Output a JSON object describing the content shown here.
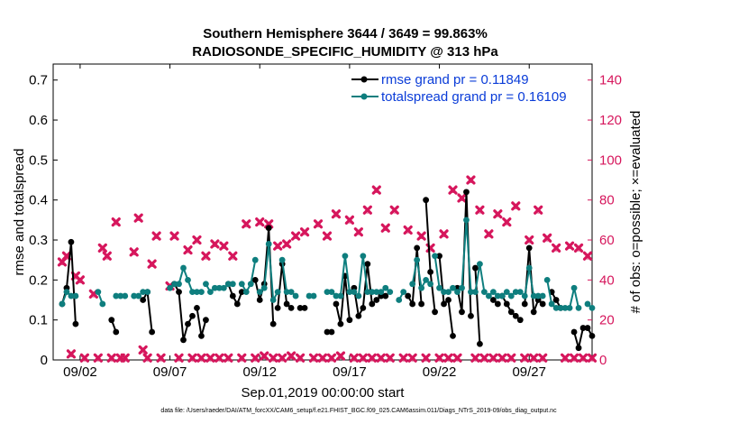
{
  "colors": {
    "rmse": "#000000",
    "spread": "#0e7e7e",
    "obs": "#d6165c",
    "legend_text": "#0a3cd8"
  },
  "chart_data": {
    "type": "line",
    "title_line1": "Southern Hemisphere 3644 / 3649 = 99.863%",
    "title_line2": "RADIOSONDE_SPECIFIC_HUMIDITY @ 313 hPa",
    "xlabel": "Sep.01,2019 00:00:00 start",
    "ylabel_left": "rmse and totalspread",
    "ylabel_right": "# of obs: o=possible; ×=evaluated",
    "x_range": [
      0.5,
      30.5
    ],
    "ylim_left": [
      0,
      0.74
    ],
    "ylim_right": [
      0,
      148
    ],
    "left_ticks": [
      "0",
      "0.1",
      "0.2",
      "0.3",
      "0.4",
      "0.5",
      "0.6",
      "0.7"
    ],
    "left_tick_values": [
      0,
      0.1,
      0.2,
      0.3,
      0.4,
      0.5,
      0.6,
      0.7
    ],
    "right_ticks": [
      "0",
      "20",
      "40",
      "60",
      "80",
      "100",
      "120",
      "140"
    ],
    "right_tick_values": [
      0,
      20,
      40,
      60,
      80,
      100,
      120,
      140
    ],
    "x_tick_labels": [
      "09/02",
      "09/07",
      "09/12",
      "09/17",
      "09/22",
      "09/27"
    ],
    "x_tick_values": [
      2,
      7,
      12,
      17,
      22,
      27
    ],
    "legend": [
      {
        "name": "rmse grand pr = 0.11849",
        "key": "rmse"
      },
      {
        "name": "totalspread grand pr = 0.16109",
        "key": "spread"
      }
    ],
    "series": [
      {
        "name": "rmse",
        "segments": [
          [
            [
              1.0,
              0.14
            ],
            [
              1.25,
              0.18
            ],
            [
              1.5,
              0.295
            ],
            [
              1.75,
              0.09
            ]
          ],
          [
            [
              3.75,
              0.1
            ],
            [
              4.0,
              0.07
            ]
          ],
          [
            [
              5.5,
              0.15
            ],
            [
              5.75,
              0.17
            ],
            [
              6.0,
              0.07
            ]
          ],
          [
            [
              7.25,
              0.19
            ],
            [
              7.5,
              0.17
            ],
            [
              7.75,
              0.05
            ],
            [
              8.0,
              0.09
            ],
            [
              8.25,
              0.11
            ]
          ],
          [
            [
              8.5,
              0.13
            ],
            [
              8.75,
              0.06
            ],
            [
              9.0,
              0.1
            ]
          ],
          [
            [
              10.25,
              0.19
            ],
            [
              10.5,
              0.16
            ],
            [
              10.75,
              0.14
            ],
            [
              11.0,
              0.17
            ]
          ],
          [
            [
              11.75,
              0.2
            ],
            [
              12.0,
              0.15
            ],
            [
              12.25,
              0.19
            ],
            [
              12.5,
              0.33
            ],
            [
              12.75,
              0.09
            ]
          ],
          [
            [
              13.0,
              0.13
            ],
            [
              13.25,
              0.24
            ],
            [
              13.5,
              0.14
            ],
            [
              13.75,
              0.13
            ]
          ],
          [
            [
              14.25,
              0.13
            ],
            [
              14.5,
              0.13
            ]
          ],
          [
            [
              15.75,
              0.07
            ],
            [
              16.0,
              0.07
            ]
          ],
          [
            [
              16.25,
              0.14
            ],
            [
              16.5,
              0.09
            ],
            [
              16.75,
              0.21
            ],
            [
              17.0,
              0.1
            ]
          ],
          [
            [
              17.25,
              0.18
            ],
            [
              17.5,
              0.11
            ],
            [
              17.75,
              0.13
            ],
            [
              18.0,
              0.24
            ],
            [
              18.25,
              0.14
            ]
          ],
          [
            [
              18.5,
              0.15
            ],
            [
              18.75,
              0.16
            ],
            [
              19.0,
              0.16
            ]
          ],
          [
            [
              20.25,
              0.16
            ],
            [
              20.5,
              0.14
            ],
            [
              20.75,
              0.28
            ],
            [
              21.0,
              0.14
            ]
          ],
          [
            [
              21.25,
              0.4
            ],
            [
              21.5,
              0.22
            ],
            [
              21.75,
              0.12
            ]
          ],
          [
            [
              22.0,
              0.26
            ],
            [
              22.25,
              0.14
            ],
            [
              22.5,
              0.15
            ],
            [
              22.75,
              0.06
            ]
          ],
          [
            [
              23.0,
              0.18
            ],
            [
              23.25,
              0.12
            ],
            [
              23.5,
              0.42
            ],
            [
              23.75,
              0.11
            ]
          ],
          [
            [
              24.0,
              0.23
            ],
            [
              24.25,
              0.04
            ]
          ],
          [
            [
              25.0,
              0.15
            ],
            [
              25.25,
              0.14
            ]
          ],
          [
            [
              25.5,
              0.16
            ],
            [
              25.75,
              0.14
            ],
            [
              26.0,
              0.12
            ],
            [
              26.25,
              0.11
            ],
            [
              26.5,
              0.1
            ]
          ],
          [
            [
              26.75,
              0.14
            ],
            [
              27.0,
              0.28
            ],
            [
              27.25,
              0.12
            ],
            [
              27.5,
              0.15
            ],
            [
              27.75,
              0.14
            ]
          ],
          [
            [
              28.25,
              0.17
            ],
            [
              28.5,
              0.15
            ],
            [
              28.75,
              0.13
            ]
          ],
          [
            [
              29.5,
              0.07
            ],
            [
              29.75,
              0.03
            ],
            [
              30.0,
              0.08
            ]
          ],
          [
            [
              30.25,
              0.08
            ],
            [
              30.5,
              0.06
            ]
          ]
        ]
      },
      {
        "name": "totalspread",
        "segments": [
          [
            [
              1.0,
              0.14
            ],
            [
              1.25,
              0.17
            ],
            [
              1.5,
              0.16
            ],
            [
              1.75,
              0.16
            ]
          ],
          [
            [
              3.0,
              0.17
            ],
            [
              3.25,
              0.14
            ]
          ],
          [
            [
              4.0,
              0.16
            ],
            [
              4.25,
              0.16
            ],
            [
              4.5,
              0.16
            ]
          ],
          [
            [
              5.0,
              0.16
            ],
            [
              5.25,
              0.16
            ]
          ],
          [
            [
              5.5,
              0.17
            ],
            [
              5.75,
              0.17
            ]
          ],
          [
            [
              7.0,
              0.18
            ],
            [
              7.25,
              0.19
            ],
            [
              7.5,
              0.19
            ],
            [
              7.75,
              0.23
            ],
            [
              8.0,
              0.2
            ],
            [
              8.25,
              0.17
            ]
          ],
          [
            [
              8.5,
              0.17
            ],
            [
              8.75,
              0.17
            ]
          ],
          [
            [
              9.0,
              0.19
            ],
            [
              9.25,
              0.17
            ],
            [
              9.5,
              0.18
            ],
            [
              9.75,
              0.18
            ],
            [
              10.0,
              0.18
            ]
          ],
          [
            [
              10.25,
              0.19
            ],
            [
              10.5,
              0.19
            ]
          ],
          [
            [
              11.0,
              0.19
            ],
            [
              11.25,
              0.17
            ],
            [
              11.5,
              0.19
            ],
            [
              11.75,
              0.25
            ]
          ],
          [
            [
              12.0,
              0.17
            ],
            [
              12.25,
              0.18
            ],
            [
              12.5,
              0.29
            ],
            [
              12.75,
              0.15
            ],
            [
              13.0,
              0.17
            ]
          ],
          [
            [
              13.25,
              0.25
            ],
            [
              13.5,
              0.17
            ],
            [
              13.75,
              0.17
            ],
            [
              14.0,
              0.16
            ]
          ],
          [
            [
              14.75,
              0.16
            ],
            [
              15.0,
              0.16
            ]
          ],
          [
            [
              15.75,
              0.17
            ],
            [
              16.0,
              0.17
            ],
            [
              16.25,
              0.16
            ]
          ],
          [
            [
              16.5,
              0.16
            ],
            [
              16.75,
              0.26
            ],
            [
              17.0,
              0.17
            ],
            [
              17.25,
              0.17
            ]
          ],
          [
            [
              17.5,
              0.16
            ],
            [
              17.75,
              0.26
            ],
            [
              18.0,
              0.17
            ],
            [
              18.25,
              0.17
            ],
            [
              18.5,
              0.17
            ]
          ],
          [
            [
              18.75,
              0.17
            ],
            [
              19.0,
              0.18
            ],
            [
              19.25,
              0.17
            ]
          ],
          [
            [
              19.75,
              0.15
            ],
            [
              20.0,
              0.17
            ]
          ],
          [
            [
              20.5,
              0.19
            ],
            [
              20.75,
              0.25
            ],
            [
              21.0,
              0.18
            ],
            [
              21.25,
              0.2
            ],
            [
              21.5,
              0.19
            ]
          ],
          [
            [
              21.75,
              0.26
            ],
            [
              22.0,
              0.18
            ],
            [
              22.25,
              0.17
            ],
            [
              22.5,
              0.17
            ],
            [
              22.75,
              0.18
            ],
            [
              23.0,
              0.17
            ]
          ],
          [
            [
              23.25,
              0.18
            ],
            [
              23.5,
              0.35
            ],
            [
              23.75,
              0.17
            ],
            [
              24.0,
              0.17
            ],
            [
              24.25,
              0.24
            ],
            [
              24.5,
              0.17
            ]
          ],
          [
            [
              24.75,
              0.16
            ],
            [
              25.0,
              0.17
            ],
            [
              25.25,
              0.16
            ]
          ],
          [
            [
              25.5,
              0.16
            ],
            [
              25.75,
              0.17
            ],
            [
              26.0,
              0.16
            ],
            [
              26.25,
              0.17
            ],
            [
              26.5,
              0.17
            ]
          ],
          [
            [
              26.75,
              0.16
            ],
            [
              27.0,
              0.23
            ],
            [
              27.25,
              0.16
            ],
            [
              27.5,
              0.16
            ],
            [
              27.75,
              0.16
            ]
          ],
          [
            [
              28.0,
              0.2
            ],
            [
              28.25,
              0.14
            ],
            [
              28.5,
              0.13
            ],
            [
              28.75,
              0.13
            ],
            [
              29.0,
              0.13
            ]
          ],
          [
            [
              29.25,
              0.13
            ],
            [
              29.5,
              0.18
            ],
            [
              29.75,
              0.13
            ]
          ],
          [
            [
              30.25,
              0.14
            ],
            [
              30.5,
              0.13
            ]
          ]
        ]
      }
    ],
    "obs_possible": [
      [
        1,
        49
      ],
      [
        1.25,
        52
      ],
      [
        1.5,
        3
      ],
      [
        1.75,
        42
      ],
      [
        2,
        40
      ],
      [
        2.25,
        1
      ],
      [
        2.75,
        33
      ],
      [
        3,
        1
      ],
      [
        3.25,
        56
      ],
      [
        3.5,
        52
      ],
      [
        3.75,
        1
      ],
      [
        4,
        69
      ],
      [
        4.25,
        1
      ],
      [
        4.5,
        1
      ],
      [
        5,
        54
      ],
      [
        5.25,
        71
      ],
      [
        5.5,
        5
      ],
      [
        5.75,
        1
      ],
      [
        6,
        48
      ],
      [
        6.25,
        62
      ],
      [
        6.5,
        1
      ],
      [
        7,
        37
      ],
      [
        7.25,
        62
      ],
      [
        7.5,
        1
      ],
      [
        8,
        55
      ],
      [
        8.25,
        1
      ],
      [
        8.5,
        60
      ],
      [
        8.75,
        1
      ],
      [
        9,
        52
      ],
      [
        9.25,
        1
      ],
      [
        9.5,
        58
      ],
      [
        9.75,
        1
      ],
      [
        10,
        57
      ],
      [
        10.25,
        1
      ],
      [
        10.5,
        52
      ],
      [
        11,
        1
      ],
      [
        11.25,
        68
      ],
      [
        11.75,
        1
      ],
      [
        12,
        69
      ],
      [
        12.25,
        2
      ],
      [
        12.5,
        68
      ],
      [
        12.75,
        1
      ],
      [
        13,
        57
      ],
      [
        13.25,
        1
      ],
      [
        13.5,
        58
      ],
      [
        13.75,
        2
      ],
      [
        14,
        62
      ],
      [
        14.25,
        1
      ],
      [
        14.5,
        64
      ],
      [
        15,
        1
      ],
      [
        15.25,
        68
      ],
      [
        15.5,
        1
      ],
      [
        15.75,
        62
      ],
      [
        16,
        1
      ],
      [
        16.25,
        73
      ],
      [
        16.5,
        2
      ],
      [
        17,
        70
      ],
      [
        17.25,
        1
      ],
      [
        17.5,
        64
      ],
      [
        17.75,
        1
      ],
      [
        18,
        75
      ],
      [
        18.25,
        1
      ],
      [
        18.5,
        85
      ],
      [
        18.75,
        1
      ],
      [
        19,
        66
      ],
      [
        19.25,
        1
      ],
      [
        19.5,
        75
      ],
      [
        20,
        1
      ],
      [
        20.25,
        65
      ],
      [
        20.5,
        1
      ],
      [
        21,
        62
      ],
      [
        21.25,
        1
      ],
      [
        21.5,
        56
      ],
      [
        22,
        1
      ],
      [
        22.25,
        63
      ],
      [
        22.5,
        1
      ],
      [
        22.75,
        85
      ],
      [
        23,
        1
      ],
      [
        23.25,
        81
      ],
      [
        23.75,
        90
      ],
      [
        24,
        1
      ],
      [
        24.25,
        75
      ],
      [
        24.5,
        1
      ],
      [
        24.75,
        63
      ],
      [
        25,
        1
      ],
      [
        25.25,
        73
      ],
      [
        25.5,
        1
      ],
      [
        25.75,
        69
      ],
      [
        26,
        1
      ],
      [
        26.25,
        77
      ],
      [
        26.75,
        1
      ],
      [
        27,
        60
      ],
      [
        27.25,
        1
      ],
      [
        27.5,
        75
      ],
      [
        27.75,
        1
      ],
      [
        28,
        61
      ],
      [
        28.5,
        56
      ],
      [
        29,
        1
      ],
      [
        29.25,
        57
      ],
      [
        29.5,
        1
      ],
      [
        29.75,
        56
      ],
      [
        30,
        1
      ],
      [
        30.25,
        52
      ],
      [
        30.5,
        1
      ]
    ],
    "data_file": "data file: /Users/raeder/DAI/ATM_forcXX/CAM6_setup/f.e21.FHIST_BGC.f09_025.CAM6assim.011/Diags_NTrS_2019-09/obs_diag_output.nc"
  }
}
